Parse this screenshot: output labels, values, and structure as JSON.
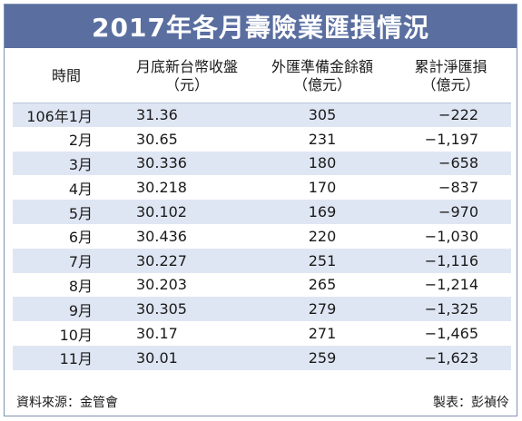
{
  "title": "2017年各月壽險業匯損情況",
  "headers": [
    {
      "line1": "時間",
      "line2": ""
    },
    {
      "line1": "月底新台幣收盤",
      "line2": "（元）"
    },
    {
      "line1": "外匯準備金餘額",
      "line2": "（億元）"
    },
    {
      "line1": "累計淨匯損",
      "line2": "（億元）"
    }
  ],
  "rows": [
    {
      "month": "106年1月",
      "rate": "31.36",
      "reserve": "305",
      "loss": "−222"
    },
    {
      "month": "2月",
      "rate": "30.65",
      "reserve": "231",
      "loss": "−1,197"
    },
    {
      "month": "3月",
      "rate": "30.336",
      "reserve": "180",
      "loss": "−658"
    },
    {
      "month": "4月",
      "rate": "30.218",
      "reserve": "170",
      "loss": "−837"
    },
    {
      "month": "5月",
      "rate": "30.102",
      "reserve": "169",
      "loss": "−970"
    },
    {
      "month": "6月",
      "rate": "30.436",
      "reserve": "220",
      "loss": "−1,030"
    },
    {
      "month": "7月",
      "rate": "30.227",
      "reserve": "251",
      "loss": "−1,116"
    },
    {
      "month": "8月",
      "rate": "30.203",
      "reserve": "265",
      "loss": "−1,214"
    },
    {
      "month": "9月",
      "rate": "30.305",
      "reserve": "279",
      "loss": "−1,325"
    },
    {
      "month": "10月",
      "rate": "30.17",
      "reserve": "271",
      "loss": "−1,465"
    },
    {
      "month": "11月",
      "rate": "30.01",
      "reserve": "259",
      "loss": "−1,623"
    }
  ],
  "footer": {
    "source": "資料來源：金管會",
    "credit": "製表：彭禎伶"
  },
  "colors": {
    "title_bar": "#5a6fa0",
    "row_stripe": "#dfe6f3",
    "border": "#7f93b4"
  }
}
